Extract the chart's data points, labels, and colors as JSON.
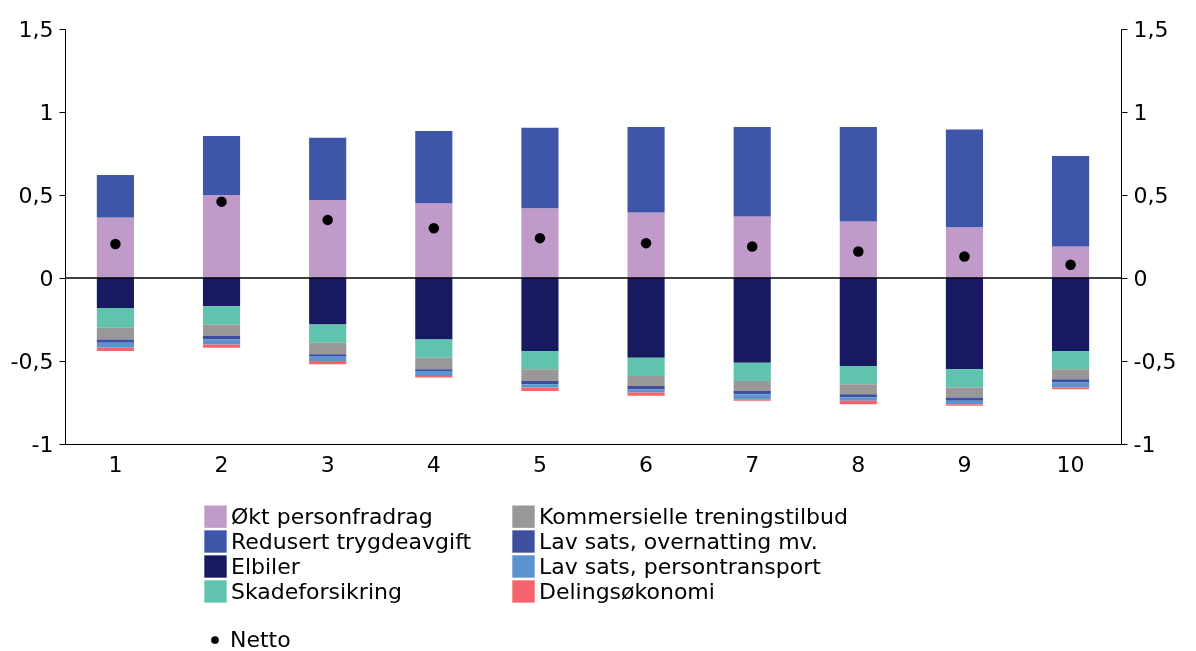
{
  "chart_data": {
    "type": "bar",
    "stacked": true,
    "categories": [
      "1",
      "2",
      "3",
      "4",
      "5",
      "6",
      "7",
      "8",
      "9",
      "10"
    ],
    "series": [
      {
        "name": "Økt personfradrag",
        "color": "#c09ac8",
        "values": [
          0.365,
          0.5,
          0.47,
          0.45,
          0.42,
          0.395,
          0.37,
          0.34,
          0.305,
          0.19
        ]
      },
      {
        "name": "Redusert trygdeavgift",
        "color": "#3f56a8",
        "values": [
          0.255,
          0.355,
          0.375,
          0.435,
          0.485,
          0.515,
          0.54,
          0.57,
          0.59,
          0.545
        ]
      },
      {
        "name": "Elbiler",
        "color": "#171a60",
        "values": [
          -0.18,
          -0.17,
          -0.28,
          -0.37,
          -0.44,
          -0.48,
          -0.51,
          -0.53,
          -0.55,
          -0.44
        ]
      },
      {
        "name": "Skadeforsikring",
        "color": "#5fc3ad",
        "values": [
          -0.12,
          -0.11,
          -0.11,
          -0.11,
          -0.11,
          -0.11,
          -0.11,
          -0.11,
          -0.11,
          -0.11
        ]
      },
      {
        "name": "Kommersielle treningstilbud",
        "color": "#999798",
        "values": [
          -0.07,
          -0.07,
          -0.07,
          -0.07,
          -0.07,
          -0.06,
          -0.06,
          -0.06,
          -0.06,
          -0.06
        ]
      },
      {
        "name": "Lav sats, overnatting mv.",
        "color": "#3f4fa0",
        "values": [
          -0.02,
          -0.02,
          -0.01,
          -0.01,
          -0.02,
          -0.02,
          -0.02,
          -0.02,
          -0.02,
          -0.02
        ]
      },
      {
        "name": "Lav sats, persontransport",
        "color": "#5b93d0",
        "values": [
          -0.03,
          -0.03,
          -0.03,
          -0.03,
          -0.02,
          -0.02,
          -0.03,
          -0.02,
          -0.02,
          -0.03
        ]
      },
      {
        "name": "Delingsøkonomi",
        "color": "#f4646a",
        "values": [
          -0.02,
          -0.02,
          -0.02,
          -0.01,
          -0.02,
          -0.02,
          -0.01,
          -0.02,
          -0.01,
          -0.01
        ]
      },
      {
        "name": "Netto",
        "type": "scatter",
        "color": "#000000",
        "marker": "circle",
        "x": [
          "1",
          "2",
          "3",
          "4",
          "5",
          "6",
          "7",
          "8",
          "9",
          "10"
        ],
        "values": [
          0.205,
          0.46,
          0.35,
          0.3,
          0.24,
          0.21,
          0.19,
          0.16,
          0.13,
          0.08
        ]
      }
    ],
    "ylim": [
      -1,
      1.5
    ],
    "yticks": [
      {
        "value": -1,
        "label": "-1"
      },
      {
        "value": -0.5,
        "label": "-0,5"
      },
      {
        "value": 0,
        "label": "0"
      },
      {
        "value": 0.5,
        "label": "0,5"
      },
      {
        "value": 1,
        "label": "1"
      },
      {
        "value": 1.5,
        "label": "1,5"
      }
    ],
    "y2lim": [
      -1,
      1.5
    ],
    "y2ticks": [
      {
        "value": -1,
        "label": "-1"
      },
      {
        "value": -0.5,
        "label": "-0,5"
      },
      {
        "value": 0,
        "label": "0"
      },
      {
        "value": 0.5,
        "label": "0,5"
      },
      {
        "value": 1,
        "label": "1"
      },
      {
        "value": 1.5,
        "label": "1,5"
      }
    ],
    "ref_lines": [
      {
        "axis": "y",
        "value": 0,
        "color": "#000000"
      }
    ],
    "grid": false,
    "legend": "bottom"
  }
}
